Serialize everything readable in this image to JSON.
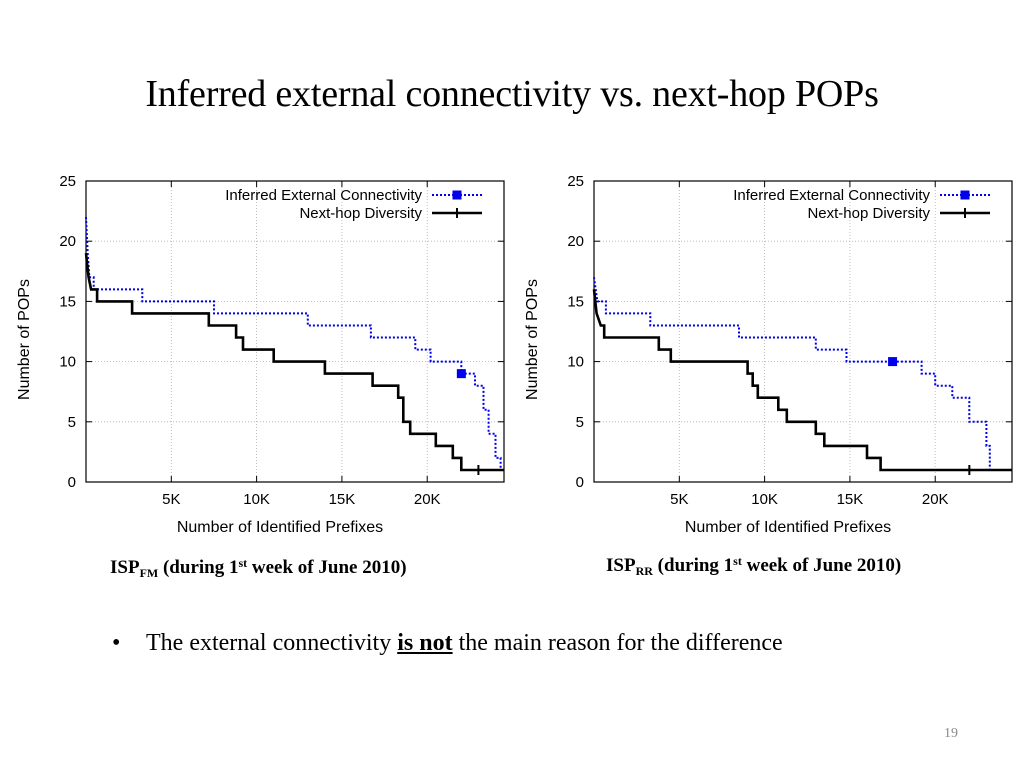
{
  "slide": {
    "title": "Inferred external connectivity vs. next-hop POPs",
    "bullet": {
      "marker": "•",
      "text_before": "The external connectivity",
      "emphasis": "is not",
      "text_after": "the main reason for the difference"
    },
    "page_number": "19"
  },
  "captions": [
    {
      "isp": "ISP",
      "sub": "FM",
      "prefix": "(during 1",
      "sup": "st",
      "suffix": "week of June 2010)"
    },
    {
      "isp": "ISP",
      "sub": "RR",
      "prefix": "(during 1",
      "sup": "st",
      "suffix": "week of June 2010)"
    }
  ],
  "colors": {
    "inferred": "#0000ee",
    "nexthop": "#000000",
    "grid": "#b0b0b0"
  },
  "chart_data": [
    {
      "type": "line",
      "xlabel": "Number of Identified Prefixes",
      "ylabel": "Number of POPs",
      "xlim": [
        0,
        24500
      ],
      "ylim": [
        0,
        25
      ],
      "xticks": [
        5000,
        10000,
        15000,
        20000
      ],
      "xtick_labels": [
        "5K",
        "10K",
        "15K",
        "20K"
      ],
      "yticks": [
        0,
        5,
        10,
        15,
        20,
        25
      ],
      "ytick_labels": [
        "0",
        "5",
        "10",
        "15",
        "20",
        "25"
      ],
      "grid": true,
      "legend_position": "top-right",
      "series": [
        {
          "name": "Inferred External Connectivity",
          "style": "dotted",
          "marker": "square",
          "marker_point": [
            22000,
            9
          ],
          "points": [
            [
              0,
              22
            ],
            [
              100,
              19
            ],
            [
              200,
              17
            ],
            [
              450,
              17
            ],
            [
              450,
              16
            ],
            [
              3300,
              16
            ],
            [
              3300,
              15
            ],
            [
              7500,
              15
            ],
            [
              7500,
              14
            ],
            [
              13000,
              14
            ],
            [
              13000,
              13
            ],
            [
              16700,
              13
            ],
            [
              16700,
              12
            ],
            [
              19300,
              12
            ],
            [
              19300,
              11
            ],
            [
              20200,
              11
            ],
            [
              20200,
              10
            ],
            [
              22000,
              10
            ],
            [
              22000,
              9
            ],
            [
              22800,
              9
            ],
            [
              22800,
              8
            ],
            [
              23300,
              8
            ],
            [
              23300,
              6
            ],
            [
              23600,
              6
            ],
            [
              23600,
              4
            ],
            [
              24000,
              4
            ],
            [
              24000,
              2
            ],
            [
              24300,
              2
            ],
            [
              24300,
              1
            ],
            [
              24500,
              1
            ]
          ]
        },
        {
          "name": "Next-hop Diversity",
          "style": "solid",
          "marker": "plus",
          "marker_point": [
            23000,
            1
          ],
          "points": [
            [
              0,
              19
            ],
            [
              150,
              17
            ],
            [
              300,
              16
            ],
            [
              650,
              16
            ],
            [
              650,
              15
            ],
            [
              2700,
              15
            ],
            [
              2700,
              14
            ],
            [
              7200,
              14
            ],
            [
              7200,
              13
            ],
            [
              8800,
              13
            ],
            [
              8800,
              12
            ],
            [
              9200,
              12
            ],
            [
              9200,
              11
            ],
            [
              11000,
              11
            ],
            [
              11000,
              10
            ],
            [
              14000,
              10
            ],
            [
              14000,
              9
            ],
            [
              16800,
              9
            ],
            [
              16800,
              8
            ],
            [
              18300,
              8
            ],
            [
              18300,
              7
            ],
            [
              18600,
              7
            ],
            [
              18600,
              5
            ],
            [
              19000,
              5
            ],
            [
              19000,
              4
            ],
            [
              20500,
              4
            ],
            [
              20500,
              3
            ],
            [
              21500,
              3
            ],
            [
              21500,
              2
            ],
            [
              22000,
              2
            ],
            [
              22000,
              1
            ],
            [
              24500,
              1
            ]
          ]
        }
      ]
    },
    {
      "type": "line",
      "xlabel": "Number of Identified Prefixes",
      "ylabel": "Number of POPs",
      "xlim": [
        0,
        24500
      ],
      "ylim": [
        0,
        25
      ],
      "xticks": [
        5000,
        10000,
        15000,
        20000
      ],
      "xtick_labels": [
        "5K",
        "10K",
        "15K",
        "20K"
      ],
      "yticks": [
        0,
        5,
        10,
        15,
        20,
        25
      ],
      "ytick_labels": [
        "0",
        "5",
        "10",
        "15",
        "20",
        "25"
      ],
      "grid": true,
      "legend_position": "top-right",
      "series": [
        {
          "name": "Inferred External Connectivity",
          "style": "dotted",
          "marker": "square",
          "marker_point": [
            17500,
            10
          ],
          "points": [
            [
              0,
              17
            ],
            [
              100,
              16
            ],
            [
              200,
              15
            ],
            [
              700,
              15
            ],
            [
              700,
              14
            ],
            [
              3300,
              14
            ],
            [
              3300,
              13
            ],
            [
              8500,
              13
            ],
            [
              8500,
              12
            ],
            [
              13000,
              12
            ],
            [
              13000,
              11
            ],
            [
              14800,
              11
            ],
            [
              14800,
              10
            ],
            [
              19200,
              10
            ],
            [
              19200,
              9
            ],
            [
              20000,
              9
            ],
            [
              20000,
              8
            ],
            [
              21000,
              8
            ],
            [
              21000,
              7
            ],
            [
              22000,
              7
            ],
            [
              22000,
              5
            ],
            [
              23000,
              5
            ],
            [
              23000,
              3
            ],
            [
              23200,
              3
            ],
            [
              23200,
              1
            ],
            [
              24500,
              1
            ]
          ]
        },
        {
          "name": "Next-hop Diversity",
          "style": "solid",
          "marker": "plus",
          "marker_point": [
            22000,
            1
          ],
          "points": [
            [
              0,
              16
            ],
            [
              150,
              14
            ],
            [
              400,
              13
            ],
            [
              600,
              13
            ],
            [
              600,
              12
            ],
            [
              3800,
              12
            ],
            [
              3800,
              11
            ],
            [
              4500,
              11
            ],
            [
              4500,
              10
            ],
            [
              9000,
              10
            ],
            [
              9000,
              9
            ],
            [
              9300,
              9
            ],
            [
              9300,
              8
            ],
            [
              9600,
              8
            ],
            [
              9600,
              7
            ],
            [
              10800,
              7
            ],
            [
              10800,
              6
            ],
            [
              11300,
              6
            ],
            [
              11300,
              5
            ],
            [
              13000,
              5
            ],
            [
              13000,
              4
            ],
            [
              13500,
              4
            ],
            [
              13500,
              3
            ],
            [
              16000,
              3
            ],
            [
              16000,
              2
            ],
            [
              16800,
              2
            ],
            [
              16800,
              1
            ],
            [
              24500,
              1
            ]
          ]
        }
      ]
    }
  ]
}
